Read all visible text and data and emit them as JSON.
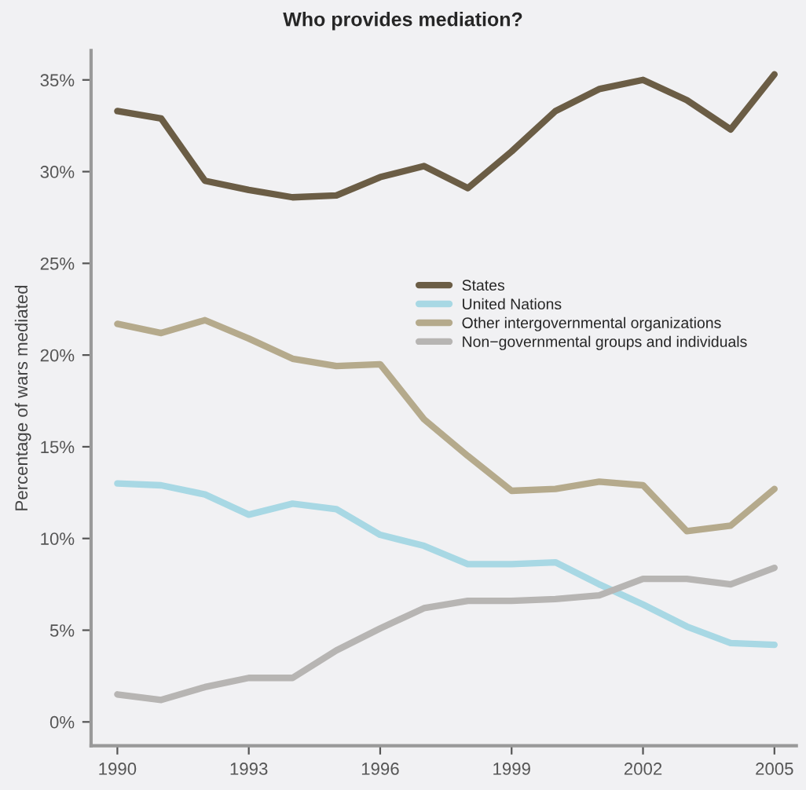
{
  "chart_data": {
    "type": "line",
    "title": "Who provides mediation?",
    "ylabel": "Percentage of wars mediated",
    "x": [
      1990,
      1991,
      1992,
      1993,
      1994,
      1995,
      1996,
      1997,
      1998,
      1999,
      2000,
      2001,
      2002,
      2003,
      2004,
      2005
    ],
    "series": [
      {
        "name": "States",
        "color": "#6b5d45",
        "values": [
          33.3,
          32.9,
          29.5,
          29.0,
          28.6,
          28.7,
          29.7,
          30.3,
          29.1,
          31.1,
          33.3,
          34.5,
          35.0,
          33.9,
          32.3,
          35.3
        ]
      },
      {
        "name": "United Nations",
        "color": "#a8d8e4",
        "values": [
          13.0,
          12.9,
          12.4,
          11.3,
          11.9,
          11.6,
          10.2,
          9.6,
          8.6,
          8.6,
          8.7,
          7.5,
          6.4,
          5.2,
          4.3,
          4.2
        ]
      },
      {
        "name": "Other intergovernmental organizations",
        "color": "#b5aa8c",
        "values": [
          21.7,
          21.2,
          21.9,
          20.9,
          19.8,
          19.4,
          19.5,
          16.5,
          14.5,
          12.6,
          12.7,
          13.1,
          12.9,
          10.4,
          10.7,
          12.7
        ]
      },
      {
        "name": "Non−governmental groups and individuals",
        "color": "#b7b5b3",
        "values": [
          1.5,
          1.2,
          1.9,
          2.4,
          2.4,
          3.9,
          5.1,
          6.2,
          6.6,
          6.6,
          6.7,
          6.9,
          7.8,
          7.8,
          7.5,
          8.4
        ]
      }
    ],
    "xlim": [
      1989.4,
      2005.5
    ],
    "xticks": [
      1990,
      1993,
      1996,
      1999,
      2002,
      2005
    ],
    "ylim": [
      -1.3,
      36.6
    ],
    "yticks": [
      {
        "value": 0,
        "label": "0%"
      },
      {
        "value": 5,
        "label": "5%"
      },
      {
        "value": 10,
        "label": "10%"
      },
      {
        "value": 15,
        "label": "15%"
      },
      {
        "value": 20,
        "label": "20%"
      },
      {
        "value": 25,
        "label": "25%"
      },
      {
        "value": 30,
        "label": "30%"
      },
      {
        "value": 35,
        "label": "35%"
      }
    ],
    "grid": false,
    "legend": "center right",
    "marker": "none",
    "line_style": "solid"
  }
}
